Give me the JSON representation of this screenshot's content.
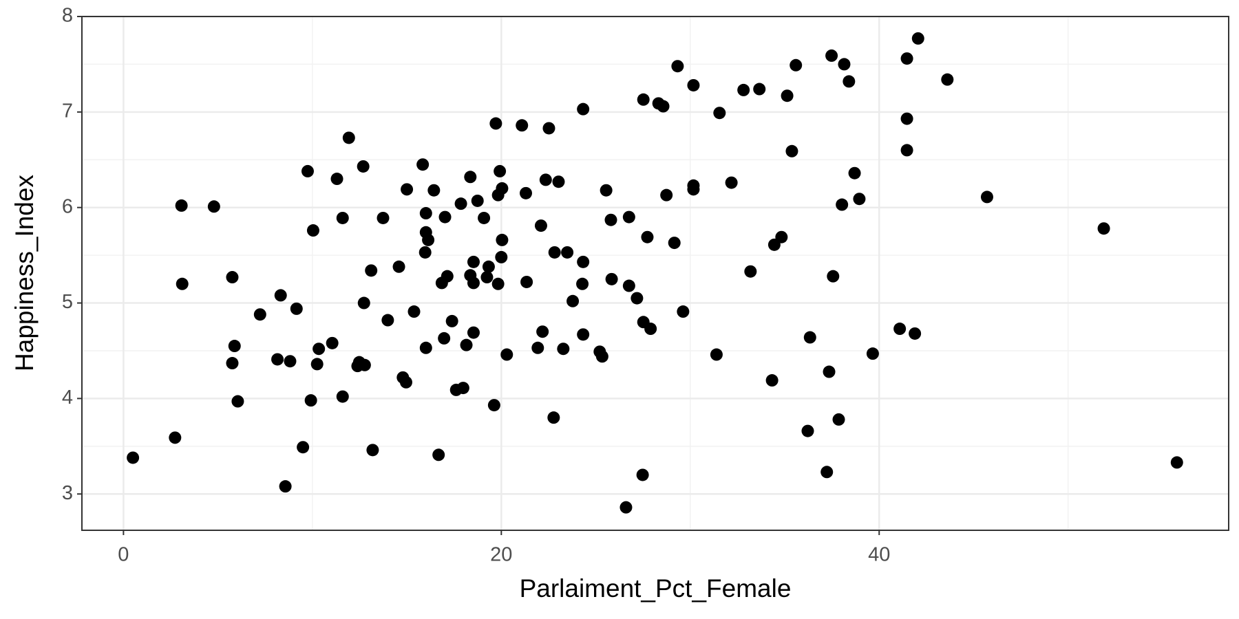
{
  "chart_data": {
    "type": "scatter",
    "x_label": "Parlaiment_Pct_Female",
    "y_label": "Happiness_Index",
    "x": [
      0.5,
      2.73,
      3.07,
      3.11,
      4.79,
      5.76,
      5.88,
      5.76,
      6.05,
      7.23,
      8.32,
      8.15,
      8.82,
      8.57,
      9.16,
      9.5,
      9.75,
      9.92,
      10.04,
      10.25,
      10.34,
      11.05,
      11.3,
      11.6,
      11.6,
      11.93,
      12.39,
      12.48,
      12.77,
      12.69,
      12.73,
      13.11,
      13.19,
      13.74,
      13.99,
      14.58,
      14.79,
      14.96,
      15.0,
      15.38,
      15.84,
      16.01,
      16.01,
      16.13,
      15.97,
      16.01,
      16.43,
      16.68,
      16.85,
      17.02,
      17.14,
      16.97,
      17.39,
      17.61,
      17.98,
      17.86,
      18.15,
      18.36,
      18.36,
      18.53,
      18.53,
      18.53,
      18.74,
      19.08,
      19.24,
      19.33,
      19.71,
      19.62,
      19.83,
      19.83,
      19.92,
      20.0,
      20.04,
      20.04,
      20.29,
      21.09,
      21.3,
      21.34,
      21.93,
      22.1,
      22.18,
      22.35,
      22.52,
      22.77,
      22.82,
      23.03,
      23.28,
      23.49,
      23.78,
      24.33,
      24.33,
      24.29,
      24.33,
      25.21,
      25.34,
      25.55,
      25.8,
      25.84,
      26.6,
      26.76,
      26.76,
      27.18,
      27.52,
      27.52,
      27.48,
      27.73,
      27.9,
      28.32,
      28.57,
      28.74,
      29.16,
      29.33,
      29.62,
      30.17,
      30.17,
      30.17,
      31.39,
      31.55,
      32.18,
      32.82,
      33.19,
      33.66,
      34.33,
      34.45,
      34.83,
      35.13,
      35.38,
      35.59,
      36.22,
      36.34,
      37.23,
      37.35,
      37.48,
      37.56,
      37.86,
      38.03,
      38.15,
      38.4,
      38.7,
      38.95,
      39.66,
      41.09,
      41.47,
      41.47,
      41.47,
      41.89,
      42.06,
      43.61,
      45.71,
      51.89,
      55.76
    ],
    "series": [
      {
        "color": "#000000",
        "values": [
          3.38,
          3.59,
          6.02,
          5.2,
          6.01,
          5.27,
          4.55,
          4.37,
          3.97,
          4.88,
          5.08,
          4.41,
          4.39,
          3.08,
          4.94,
          3.49,
          6.38,
          3.98,
          5.76,
          4.36,
          4.52,
          4.58,
          6.3,
          5.89,
          4.02,
          6.73,
          4.34,
          4.38,
          4.35,
          6.43,
          5.0,
          5.34,
          3.46,
          5.89,
          4.82,
          5.38,
          4.22,
          4.17,
          6.19,
          4.91,
          6.45,
          5.94,
          5.74,
          5.66,
          5.53,
          4.53,
          6.18,
          3.41,
          5.21,
          5.9,
          5.28,
          4.63,
          4.81,
          4.09,
          4.11,
          6.04,
          4.56,
          6.32,
          5.29,
          5.43,
          5.21,
          4.69,
          6.07,
          5.89,
          5.27,
          5.38,
          6.88,
          3.93,
          5.2,
          6.13,
          6.38,
          5.48,
          6.2,
          5.66,
          4.46,
          6.86,
          6.15,
          5.22,
          4.53,
          5.81,
          4.7,
          6.29,
          6.83,
          3.8,
          5.53,
          6.27,
          4.52,
          5.53,
          5.02,
          7.03,
          5.43,
          5.2,
          4.67,
          4.49,
          4.44,
          6.18,
          5.87,
          5.25,
          2.86,
          5.9,
          5.18,
          5.05,
          7.13,
          4.8,
          3.2,
          5.69,
          4.73,
          7.09,
          7.06,
          6.13,
          5.63,
          7.48,
          4.91,
          7.28,
          6.23,
          6.19,
          4.46,
          6.99,
          6.26,
          7.23,
          5.33,
          7.24,
          4.19,
          5.61,
          5.69,
          7.17,
          6.59,
          7.49,
          3.66,
          4.64,
          3.23,
          4.28,
          7.59,
          5.28,
          3.78,
          6.03,
          7.5,
          7.32,
          6.36,
          6.09,
          4.47,
          4.73,
          7.56,
          6.93,
          6.6,
          4.68,
          7.77,
          7.34,
          6.11,
          5.78,
          3.33
        ]
      }
    ],
    "xlim": [
      -2.2,
      58.5
    ],
    "ylim": [
      2.62,
      8.0
    ],
    "xticks": [
      0,
      20,
      40
    ],
    "yticks": [
      3,
      4,
      5,
      6,
      7,
      8
    ],
    "xminor": [
      10,
      30,
      50
    ],
    "yminor": [
      3.5,
      4.5,
      5.5,
      6.5,
      7.5
    ],
    "grid": true
  }
}
